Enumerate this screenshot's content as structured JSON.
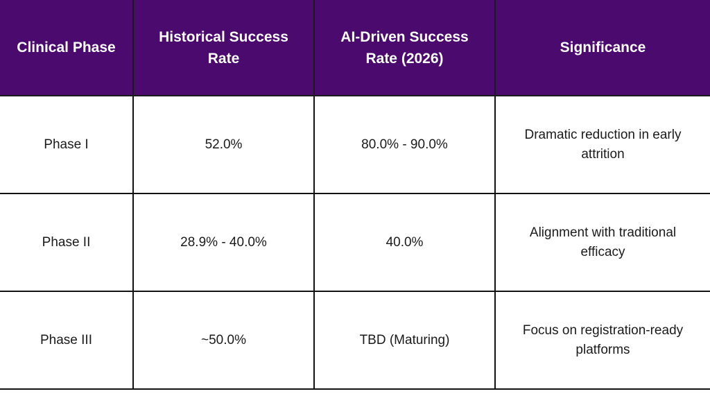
{
  "table": {
    "headers": [
      "Clinical Phase",
      "Historical Success Rate",
      "AI-Driven Success Rate (2026)",
      "Significance"
    ],
    "rows": [
      [
        "Phase I",
        "52.0%",
        "80.0% - 90.0%",
        "Dramatic reduction in early attrition"
      ],
      [
        "Phase II",
        "28.9% - 40.0%",
        "40.0%",
        "Alignment with traditional efficacy"
      ],
      [
        "Phase III",
        "~50.0%",
        "TBD (Maturing)",
        "Focus on registration-ready platforms"
      ]
    ]
  },
  "colors": {
    "header_background": "#4b0a6e",
    "header_text": "#ffffff",
    "body_text": "#1a1a1a",
    "border": "#111111"
  }
}
